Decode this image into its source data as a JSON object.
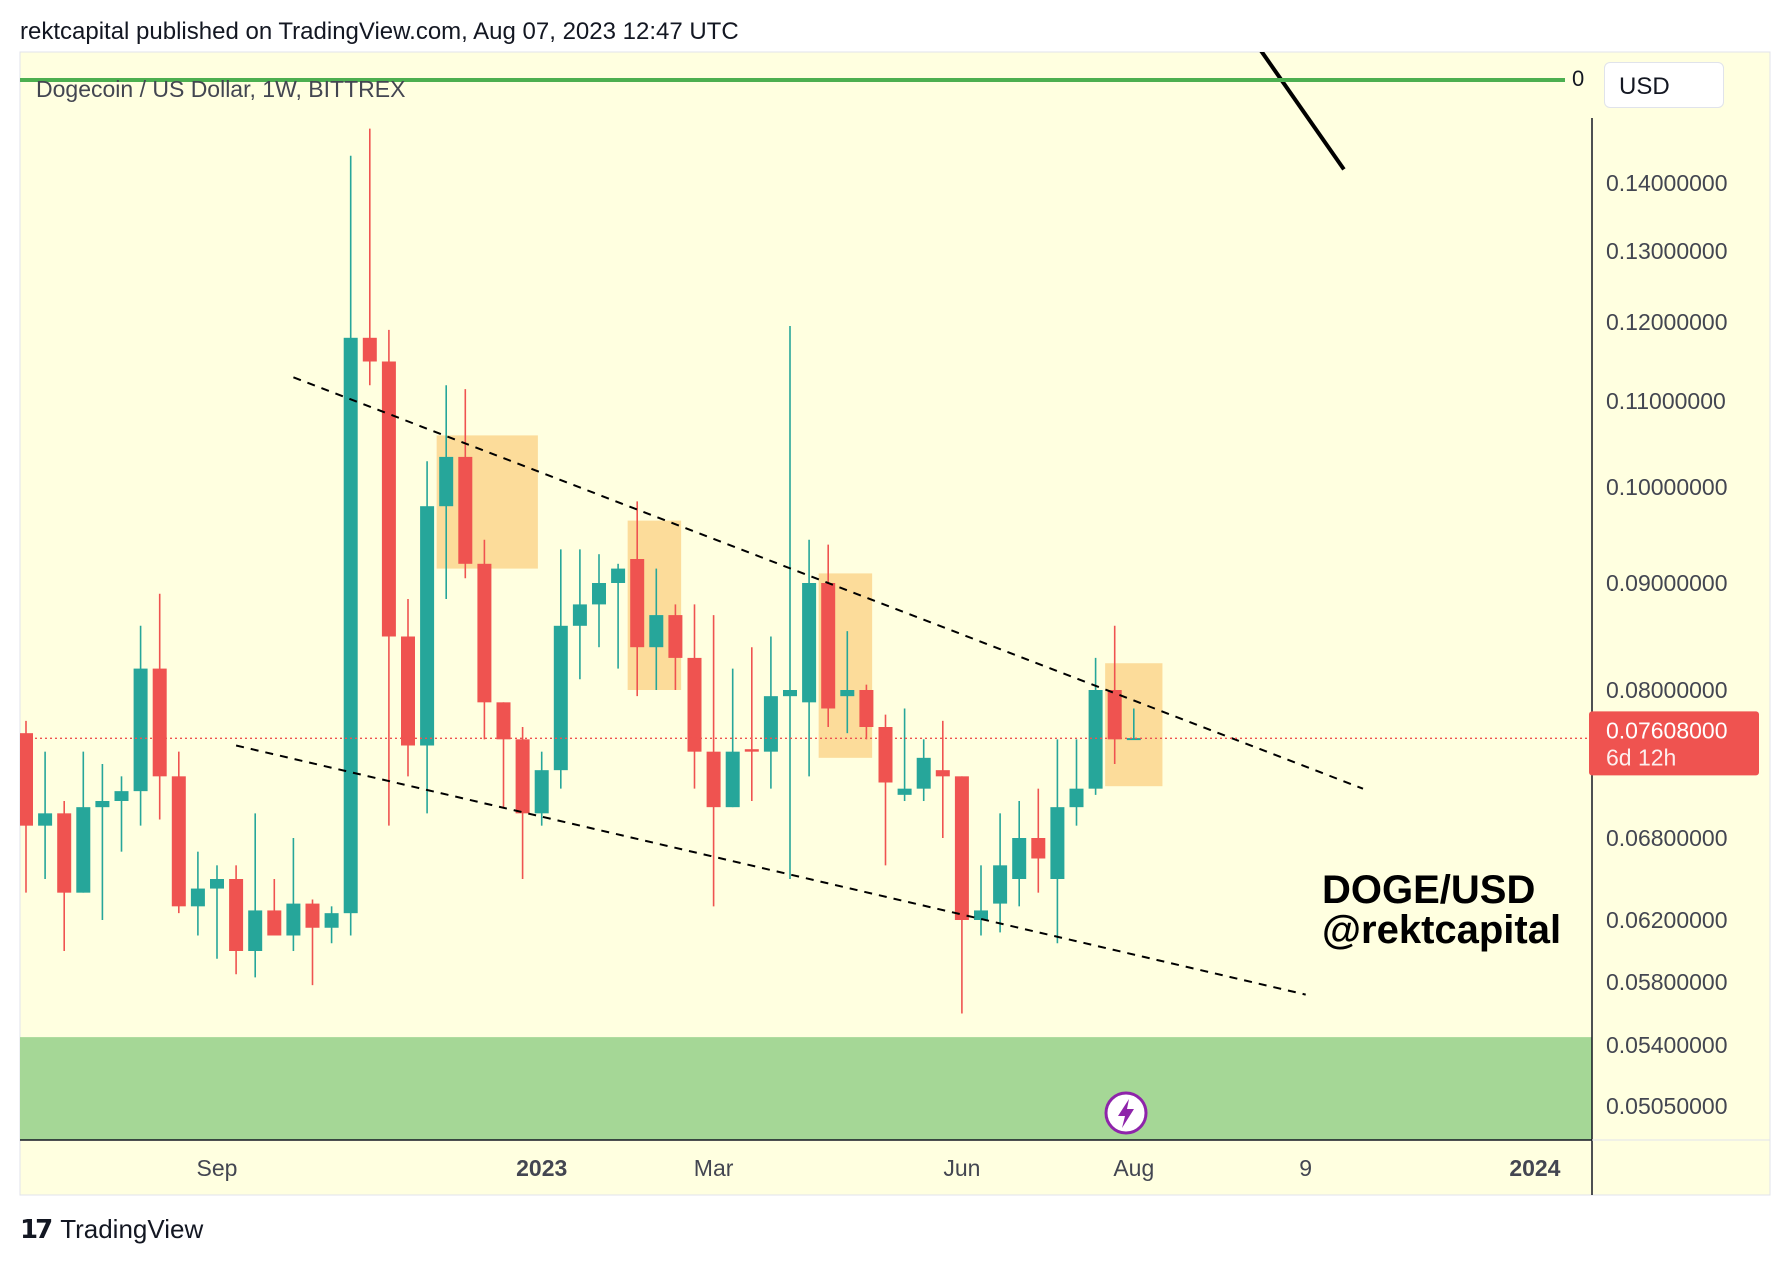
{
  "header": {
    "text": "rektcapital published on TradingView.com, Aug 07, 2023 12:47 UTC"
  },
  "chart_title": "Dogecoin / US Dollar, 1W, BITTREX",
  "currency_button": "USD",
  "zero_label": "0",
  "watermark": {
    "line1": "DOGE/USD",
    "line2": "@rektcapital"
  },
  "footer": {
    "brand": "TradingView",
    "logo_glyph": "17"
  },
  "colors": {
    "background": "#ffffe0",
    "up": "#26a69a",
    "down": "#ef5350",
    "support_zone": "#a5d796",
    "highlight_box": "#fcd68d",
    "green_line": "#4caf50"
  },
  "chart_data": {
    "type": "candlestick",
    "title": "Dogecoin / US Dollar, 1W, BITTREX",
    "y_tick_labels": [
      "0.14000000",
      "0.13000000",
      "0.12000000",
      "0.11000000",
      "0.10000000",
      "0.09000000",
      "0.08000000",
      "0.06800000",
      "0.06200000",
      "0.05800000",
      "0.05400000",
      "0.05050000"
    ],
    "y_ticks": [
      0.14,
      0.13,
      0.12,
      0.11,
      0.1,
      0.09,
      0.08,
      0.068,
      0.062,
      0.058,
      0.054,
      0.0505
    ],
    "x_labels": [
      {
        "text": "Sep",
        "idx": 10,
        "bold": false
      },
      {
        "text": "2023",
        "idx": 27,
        "bold": true
      },
      {
        "text": "Mar",
        "idx": 36,
        "bold": false
      },
      {
        "text": "Jun",
        "idx": 49,
        "bold": false
      },
      {
        "text": "Aug",
        "idx": 58,
        "bold": false
      },
      {
        "text": "9",
        "idx": 67,
        "bold": false
      },
      {
        "text": "2024",
        "idx": 79,
        "bold": true
      }
    ],
    "last_price": {
      "price": "0.07608000",
      "countdown": "6d 12h",
      "value": 0.07608
    },
    "candles": [
      {
        "o": 0.0765,
        "h": 0.0775,
        "l": 0.064,
        "c": 0.069
      },
      {
        "o": 0.069,
        "h": 0.075,
        "l": 0.065,
        "c": 0.07
      },
      {
        "o": 0.07,
        "h": 0.071,
        "l": 0.06,
        "c": 0.064
      },
      {
        "o": 0.064,
        "h": 0.075,
        "l": 0.064,
        "c": 0.0705
      },
      {
        "o": 0.0705,
        "h": 0.074,
        "l": 0.062,
        "c": 0.071
      },
      {
        "o": 0.071,
        "h": 0.073,
        "l": 0.067,
        "c": 0.0718
      },
      {
        "o": 0.0718,
        "h": 0.086,
        "l": 0.069,
        "c": 0.082
      },
      {
        "o": 0.082,
        "h": 0.089,
        "l": 0.0695,
        "c": 0.073
      },
      {
        "o": 0.073,
        "h": 0.075,
        "l": 0.0625,
        "c": 0.063
      },
      {
        "o": 0.063,
        "h": 0.067,
        "l": 0.061,
        "c": 0.0643
      },
      {
        "o": 0.0643,
        "h": 0.066,
        "l": 0.0595,
        "c": 0.065
      },
      {
        "o": 0.065,
        "h": 0.066,
        "l": 0.0585,
        "c": 0.06
      },
      {
        "o": 0.06,
        "h": 0.07,
        "l": 0.0583,
        "c": 0.0627
      },
      {
        "o": 0.0627,
        "h": 0.065,
        "l": 0.061,
        "c": 0.061
      },
      {
        "o": 0.061,
        "h": 0.068,
        "l": 0.06,
        "c": 0.0632
      },
      {
        "o": 0.0632,
        "h": 0.0635,
        "l": 0.0578,
        "c": 0.0615
      },
      {
        "o": 0.0615,
        "h": 0.063,
        "l": 0.0605,
        "c": 0.0625
      },
      {
        "o": 0.0625,
        "h": 0.144,
        "l": 0.061,
        "c": 0.118
      },
      {
        "o": 0.118,
        "h": 0.148,
        "l": 0.112,
        "c": 0.115
      },
      {
        "o": 0.115,
        "h": 0.119,
        "l": 0.069,
        "c": 0.085
      },
      {
        "o": 0.085,
        "h": 0.0885,
        "l": 0.073,
        "c": 0.0755
      },
      {
        "o": 0.0755,
        "h": 0.103,
        "l": 0.07,
        "c": 0.098
      },
      {
        "o": 0.098,
        "h": 0.112,
        "l": 0.0885,
        "c": 0.1035
      },
      {
        "o": 0.1035,
        "h": 0.1115,
        "l": 0.0905,
        "c": 0.092
      },
      {
        "o": 0.092,
        "h": 0.0945,
        "l": 0.076,
        "c": 0.079
      },
      {
        "o": 0.079,
        "h": 0.079,
        "l": 0.0705,
        "c": 0.076
      },
      {
        "o": 0.076,
        "h": 0.077,
        "l": 0.065,
        "c": 0.07
      },
      {
        "o": 0.07,
        "h": 0.075,
        "l": 0.069,
        "c": 0.0735
      },
      {
        "o": 0.0735,
        "h": 0.0935,
        "l": 0.072,
        "c": 0.086
      },
      {
        "o": 0.086,
        "h": 0.0935,
        "l": 0.081,
        "c": 0.088
      },
      {
        "o": 0.088,
        "h": 0.093,
        "l": 0.084,
        "c": 0.09
      },
      {
        "o": 0.09,
        "h": 0.092,
        "l": 0.082,
        "c": 0.0915
      },
      {
        "o": 0.0925,
        "h": 0.0985,
        "l": 0.0795,
        "c": 0.084
      },
      {
        "o": 0.084,
        "h": 0.0915,
        "l": 0.08,
        "c": 0.087
      },
      {
        "o": 0.087,
        "h": 0.088,
        "l": 0.08,
        "c": 0.083
      },
      {
        "o": 0.083,
        "h": 0.088,
        "l": 0.072,
        "c": 0.075
      },
      {
        "o": 0.075,
        "h": 0.087,
        "l": 0.063,
        "c": 0.0705
      },
      {
        "o": 0.0705,
        "h": 0.082,
        "l": 0.0705,
        "c": 0.075
      },
      {
        "o": 0.0752,
        "h": 0.084,
        "l": 0.071,
        "c": 0.075
      },
      {
        "o": 0.075,
        "h": 0.085,
        "l": 0.072,
        "c": 0.0795
      },
      {
        "o": 0.0795,
        "h": 0.1195,
        "l": 0.065,
        "c": 0.08
      },
      {
        "o": 0.079,
        "h": 0.0945,
        "l": 0.073,
        "c": 0.09
      },
      {
        "o": 0.09,
        "h": 0.094,
        "l": 0.077,
        "c": 0.0785
      },
      {
        "o": 0.0795,
        "h": 0.0855,
        "l": 0.0765,
        "c": 0.08
      },
      {
        "o": 0.08,
        "h": 0.0805,
        "l": 0.076,
        "c": 0.077
      },
      {
        "o": 0.077,
        "h": 0.078,
        "l": 0.066,
        "c": 0.0725
      },
      {
        "o": 0.0715,
        "h": 0.0785,
        "l": 0.071,
        "c": 0.072
      },
      {
        "o": 0.072,
        "h": 0.076,
        "l": 0.071,
        "c": 0.0745
      },
      {
        "o": 0.0735,
        "h": 0.0775,
        "l": 0.068,
        "c": 0.073
      },
      {
        "o": 0.073,
        "h": 0.073,
        "l": 0.056,
        "c": 0.062
      },
      {
        "o": 0.062,
        "h": 0.066,
        "l": 0.061,
        "c": 0.0627
      },
      {
        "o": 0.0632,
        "h": 0.07,
        "l": 0.0612,
        "c": 0.066
      },
      {
        "o": 0.065,
        "h": 0.071,
        "l": 0.063,
        "c": 0.068
      },
      {
        "o": 0.068,
        "h": 0.072,
        "l": 0.064,
        "c": 0.0665
      },
      {
        "o": 0.065,
        "h": 0.076,
        "l": 0.0605,
        "c": 0.0705
      },
      {
        "o": 0.0705,
        "h": 0.076,
        "l": 0.069,
        "c": 0.072
      },
      {
        "o": 0.072,
        "h": 0.083,
        "l": 0.0715,
        "c": 0.08
      },
      {
        "o": 0.08,
        "h": 0.086,
        "l": 0.074,
        "c": 0.076
      },
      {
        "o": 0.076,
        "h": 0.0785,
        "l": 0.076,
        "c": 0.0761
      }
    ],
    "trendlines": [
      {
        "name": "upper-channel",
        "style": "dashed",
        "from": {
          "idx": 14.0,
          "price": 0.113
        },
        "to": {
          "idx": 70.0,
          "price": 0.072
        }
      },
      {
        "name": "lower-channel",
        "style": "dashed",
        "from": {
          "idx": 11.0,
          "price": 0.0755
        },
        "to": {
          "idx": 67.0,
          "price": 0.0572
        }
      },
      {
        "name": "macro-downtrend",
        "style": "solid",
        "from": {
          "idx": 49.6,
          "price": 0.22
        },
        "to": {
          "idx": 69.0,
          "price": 0.142
        }
      }
    ],
    "highlight_boxes": [
      {
        "idx_from": 21.5,
        "idx_to": 26.8,
        "price_top": 0.106,
        "price_bottom": 0.0915
      },
      {
        "idx_from": 31.5,
        "idx_to": 34.3,
        "price_top": 0.0965,
        "price_bottom": 0.08
      },
      {
        "idx_from": 41.5,
        "idx_to": 44.3,
        "price_top": 0.091,
        "price_bottom": 0.0745
      },
      {
        "idx_from": 56.5,
        "idx_to": 59.5,
        "price_top": 0.0825,
        "price_bottom": 0.0722
      }
    ],
    "support_zone": {
      "price_top": 0.0545,
      "price_bottom": 0.049
    },
    "horizontal_line": {
      "label": "0",
      "color": "#4caf50"
    }
  }
}
